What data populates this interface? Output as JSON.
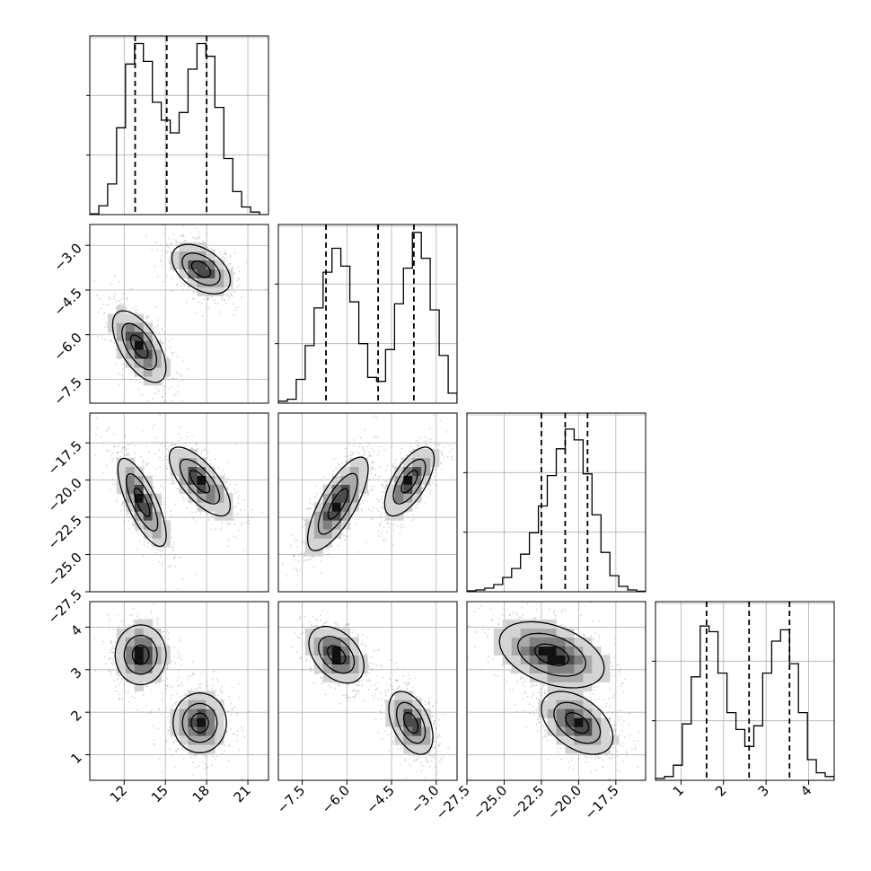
{
  "colors": {
    "line": "#000000",
    "grid": "#b0b0b0",
    "fill_levels": [
      "#ffffff",
      "#d4d4d4",
      "#aaaaaa",
      "#7f7f7f",
      "#4c4c4c",
      "#111111"
    ],
    "scatter": "#8a8a8a"
  },
  "chart_data": {
    "type": "corner",
    "grid": true,
    "n_params": 4,
    "axes": [
      {
        "range": [
          9.5,
          22.5
        ],
        "ticks": [
          12,
          15,
          18,
          21
        ],
        "tick_labels": [
          "12",
          "15",
          "18",
          "21"
        ],
        "quantiles": [
          12.8,
          15.1,
          18.0
        ],
        "hist": {
          "edges": [
            9.5,
            10.15,
            10.8,
            11.45,
            12.1,
            12.75,
            13.4,
            14.05,
            14.7,
            15.35,
            16.0,
            16.65,
            17.3,
            17.95,
            18.6,
            19.25,
            19.9,
            20.55,
            21.2,
            21.85,
            22.5
          ],
          "counts": [
            0.3,
            3.5,
            12,
            34,
            59,
            67,
            60,
            44,
            37,
            32,
            40,
            57,
            67,
            62,
            42,
            22,
            9,
            3,
            1,
            0
          ],
          "max": 70
        },
        "clusters": [
          {
            "mx": 13.2,
            "my": 0,
            "sx": 1.0,
            "sy": 0
          }
        ]
      },
      {
        "range": [
          -8.3,
          -2.3
        ],
        "ticks": [
          -7.5,
          -6.0,
          -4.5,
          -3.0
        ],
        "tick_labels": [
          "−7.5",
          "−6.0",
          "−4.5",
          "−3.0"
        ],
        "quantiles": [
          -6.7,
          -4.95,
          -3.75
        ],
        "hist": {
          "edges": [
            -8.3,
            -8.0,
            -7.7,
            -7.4,
            -7.1,
            -6.8,
            -6.5,
            -6.2,
            -5.9,
            -5.6,
            -5.3,
            -5.0,
            -4.7,
            -4.4,
            -4.1,
            -3.8,
            -3.5,
            -3.2,
            -2.9,
            -2.6,
            -2.3
          ],
          "counts": [
            1,
            2,
            12,
            29,
            48,
            66,
            78,
            69,
            51,
            30,
            13,
            11,
            27,
            50,
            68,
            86,
            73,
            47,
            24,
            5
          ],
          "max": 90
        }
      },
      {
        "range": [
          -27.5,
          -15.5
        ],
        "ticks": [
          -27.5,
          -25.0,
          -22.5,
          -20.0,
          -17.5
        ],
        "tick_labels": [
          "−27.5",
          "−25.0",
          "−22.5",
          "−20.0",
          "−17.5"
        ],
        "quantiles": [
          -22.5,
          -20.9,
          -19.4
        ],
        "hist": {
          "edges": [
            -27.5,
            -26.9,
            -26.3,
            -25.7,
            -25.1,
            -24.5,
            -23.9,
            -23.3,
            -22.7,
            -22.1,
            -21.5,
            -20.9,
            -20.3,
            -19.7,
            -19.1,
            -18.5,
            -17.9,
            -17.3,
            -16.7,
            -16.1,
            -15.5
          ],
          "counts": [
            0.5,
            1,
            2,
            4,
            8,
            13,
            21,
            33,
            48,
            65,
            80,
            91,
            85,
            66,
            43,
            22,
            9,
            3,
            1,
            0.3
          ],
          "max": 100
        }
      },
      {
        "range": [
          0.4,
          4.6
        ],
        "ticks": [
          1,
          2,
          3,
          4
        ],
        "tick_labels": [
          "1",
          "2",
          "3",
          "4"
        ],
        "quantiles": [
          1.6,
          2.6,
          3.55
        ],
        "hist": {
          "edges": [
            0.4,
            0.61,
            0.82,
            1.03,
            1.24,
            1.45,
            1.66,
            1.87,
            2.08,
            2.29,
            2.5,
            2.71,
            2.92,
            3.13,
            3.34,
            3.55,
            3.76,
            3.97,
            4.18,
            4.39,
            4.6
          ],
          "counts": [
            1,
            2,
            8,
            30,
            55,
            82,
            79,
            57,
            36,
            27,
            18,
            29,
            57,
            74,
            80,
            62,
            36,
            11,
            4,
            2
          ],
          "max": 95
        }
      }
    ],
    "pairs": [
      {
        "x": 0,
        "y": 1,
        "clusters": [
          {
            "mx": 13.1,
            "my": -6.4,
            "sx": 1.05,
            "sy": 0.65,
            "rho": -0.6,
            "peak": 1.0
          },
          {
            "mx": 17.6,
            "my": -3.8,
            "sx": 1.15,
            "sy": 0.45,
            "rho": -0.45,
            "peak": 0.95
          }
        ]
      },
      {
        "x": 0,
        "y": 2,
        "clusters": [
          {
            "mx": 13.3,
            "my": -21.5,
            "sx": 0.95,
            "sy": 1.6,
            "rho": -0.75,
            "peak": 1.0
          },
          {
            "mx": 17.5,
            "my": -20.1,
            "sx": 1.2,
            "sy": 1.25,
            "rho": -0.7,
            "peak": 0.95
          }
        ]
      },
      {
        "x": 1,
        "y": 2,
        "clusters": [
          {
            "mx": -6.3,
            "my": -21.6,
            "sx": 0.55,
            "sy": 1.7,
            "rho": 0.75,
            "peak": 1.0
          },
          {
            "mx": -3.9,
            "my": -20.1,
            "sx": 0.45,
            "sy": 1.25,
            "rho": 0.65,
            "peak": 0.95
          }
        ]
      },
      {
        "x": 0,
        "y": 3,
        "clusters": [
          {
            "mx": 13.2,
            "my": 3.35,
            "sx": 1.0,
            "sy": 0.38,
            "rho": 0.0,
            "peak": 1.0
          },
          {
            "mx": 17.5,
            "my": 1.75,
            "sx": 1.05,
            "sy": 0.38,
            "rho": 0.0,
            "peak": 0.95
          }
        ]
      },
      {
        "x": 1,
        "y": 3,
        "clusters": [
          {
            "mx": -6.35,
            "my": 3.35,
            "sx": 0.5,
            "sy": 0.36,
            "rho": -0.4,
            "peak": 1.0
          },
          {
            "mx": -3.85,
            "my": 1.75,
            "sx": 0.4,
            "sy": 0.4,
            "rho": -0.45,
            "peak": 0.95
          }
        ]
      },
      {
        "x": 2,
        "y": 3,
        "clusters": [
          {
            "mx": -21.8,
            "my": 3.35,
            "sx": 1.9,
            "sy": 0.42,
            "rho": -0.4,
            "peak": 1.0
          },
          {
            "mx": -20.1,
            "my": 1.75,
            "sx": 1.3,
            "sy": 0.4,
            "rho": -0.45,
            "peak": 0.95
          }
        ]
      }
    ]
  }
}
